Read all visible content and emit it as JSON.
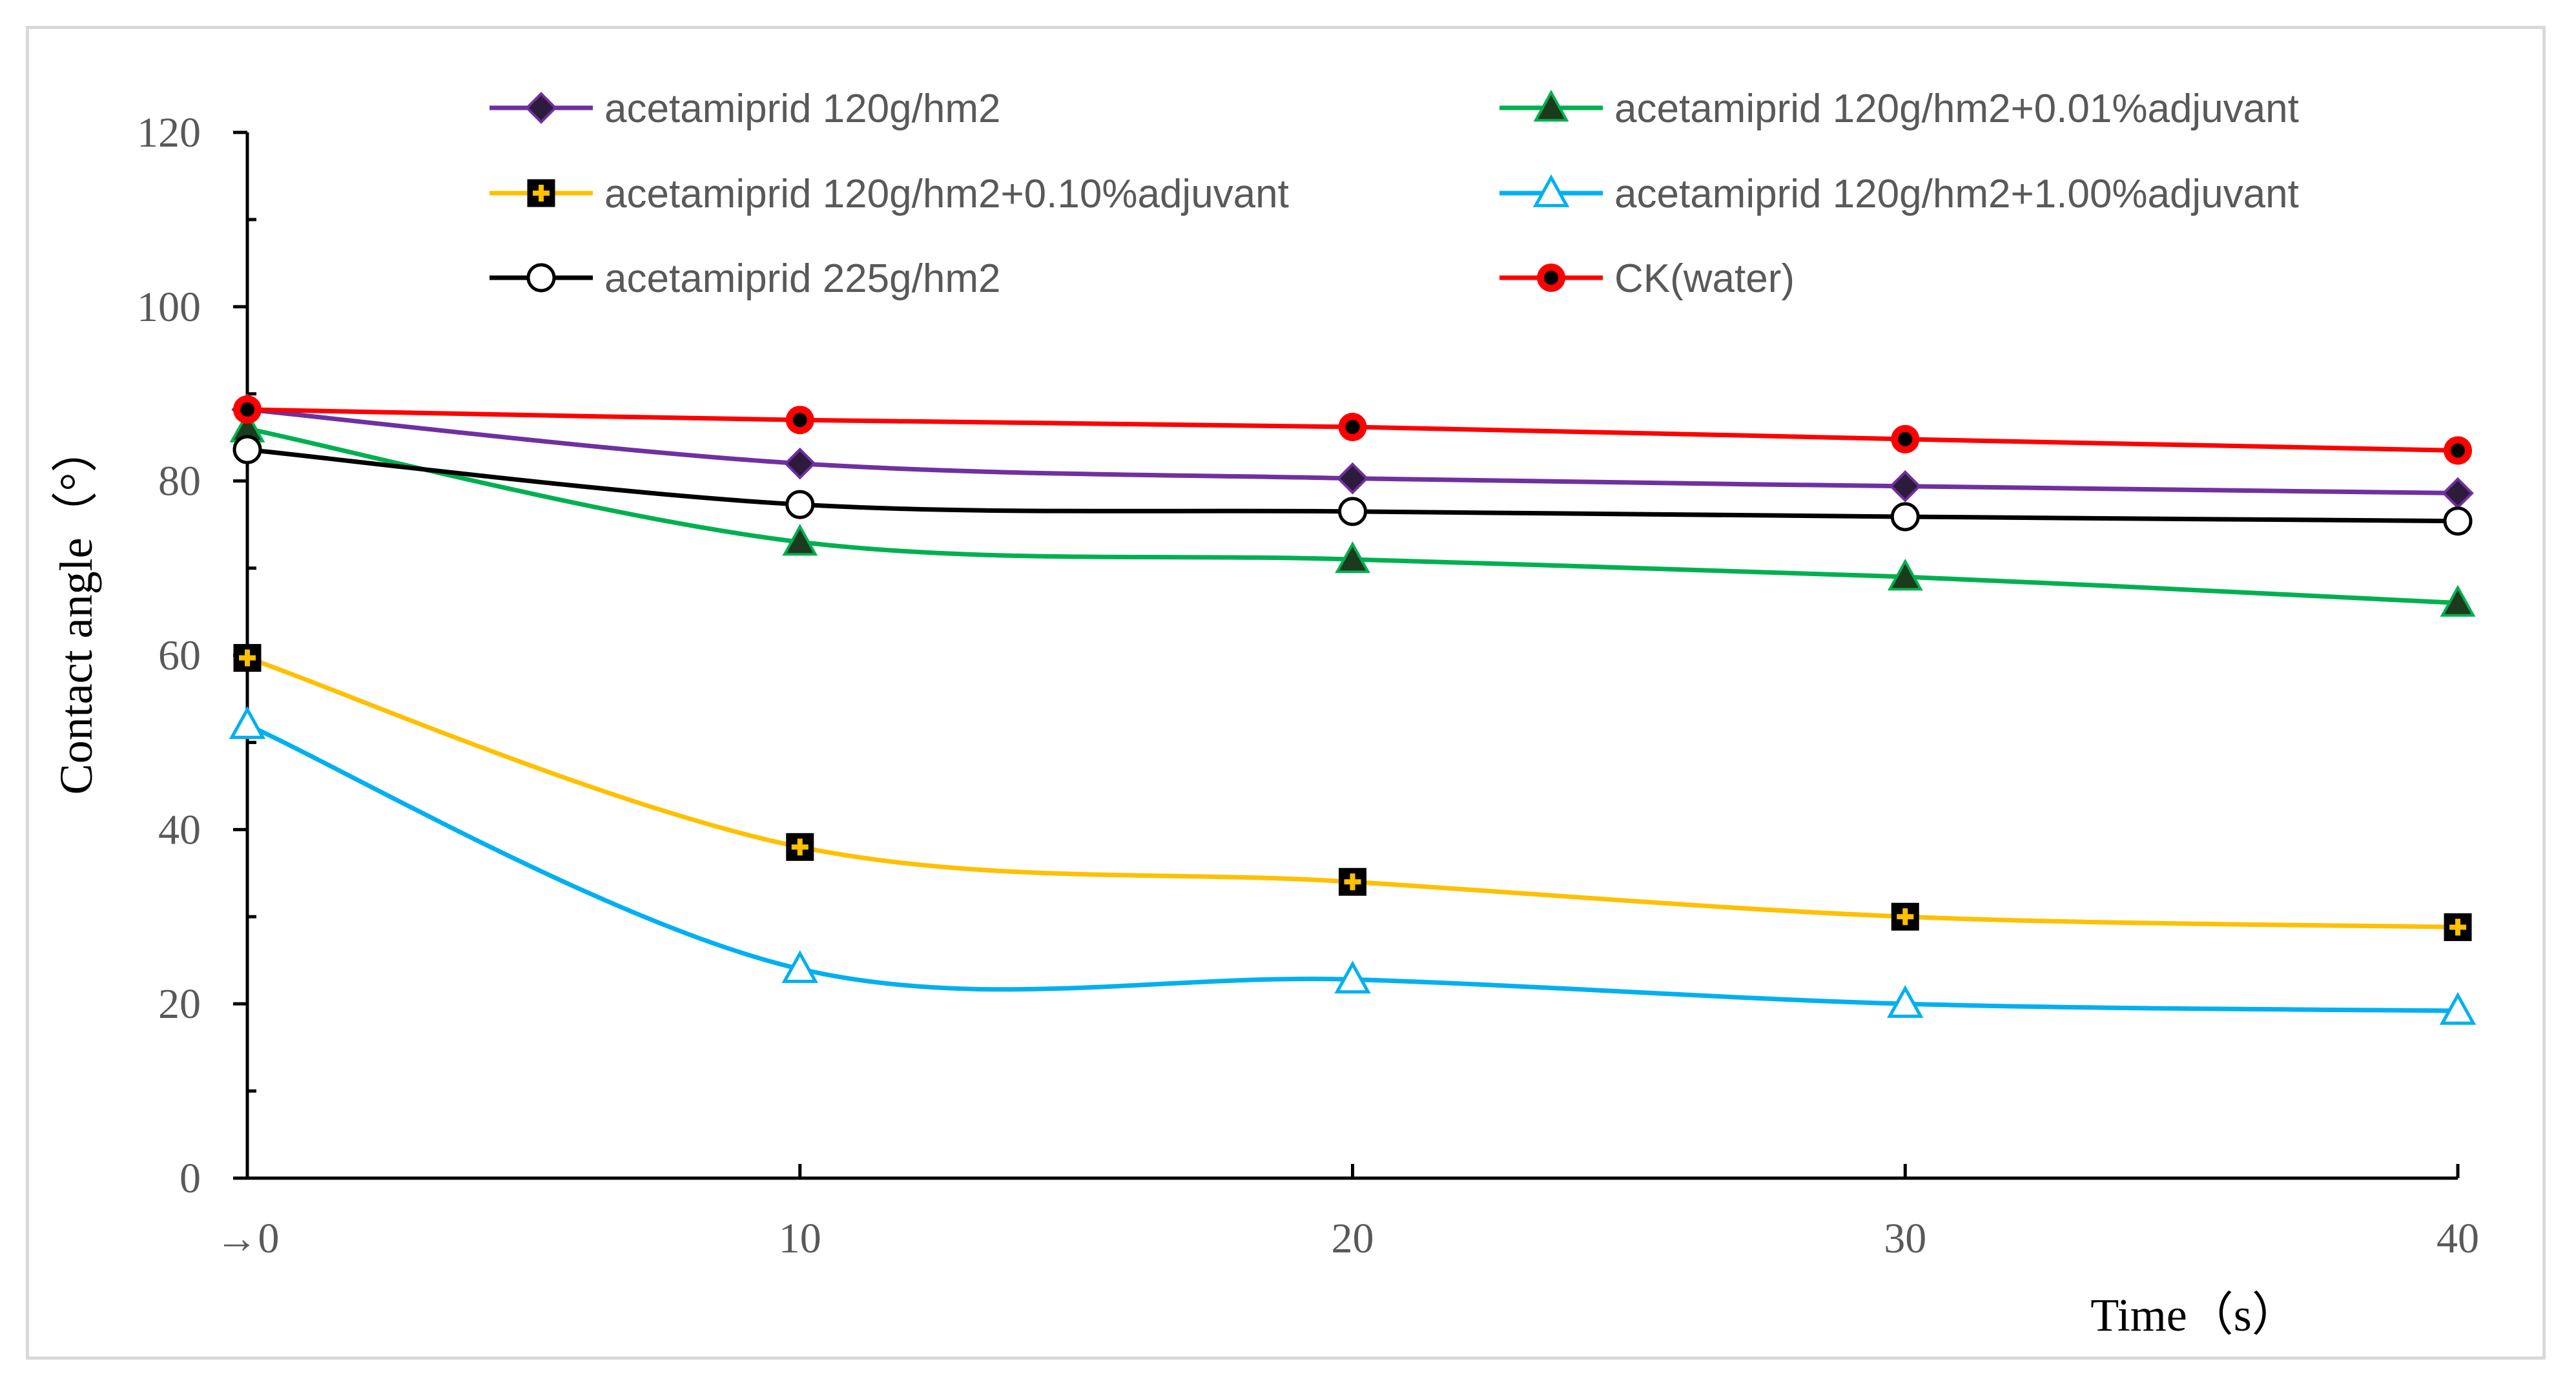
{
  "chart_data": {
    "type": "line",
    "title": "",
    "xlabel": "Time（s）",
    "ylabel": "Contact angle（°）",
    "x": [
      0,
      10,
      20,
      30,
      40
    ],
    "xtick_labels": [
      "→0",
      "10",
      "20",
      "30",
      "40"
    ],
    "yticks": [
      0,
      20,
      40,
      60,
      80,
      100,
      120
    ],
    "xlim": [
      0,
      40
    ],
    "ylim": [
      0,
      120
    ],
    "grid": false,
    "legend_position": "top",
    "series": [
      {
        "name": "acetamiprid 120g/hm2",
        "color": "#7030a0",
        "marker": "diamond",
        "values": [
          88.2,
          82.0,
          80.3,
          79.4,
          78.6
        ]
      },
      {
        "name": "acetamiprid 120g/hm2+0.01%adjuvant",
        "color": "#00b050",
        "marker": "triangle",
        "values": [
          86.0,
          73.0,
          71.0,
          69.0,
          66.0
        ]
      },
      {
        "name": "acetamiprid 120g/hm2+0.10%adjuvant",
        "color": "#ffc000",
        "marker": "plus-square",
        "values": [
          59.7,
          38.0,
          34.0,
          30.0,
          28.8
        ]
      },
      {
        "name": "acetamiprid 120g/hm2+1.00%adjuvant",
        "color": "#00b0f0",
        "marker": "open-triangle",
        "values": [
          52.0,
          24.0,
          22.8,
          20.0,
          19.2
        ]
      },
      {
        "name": "acetamiprid 225g/hm2",
        "color": "#000000",
        "marker": "open-circle",
        "values": [
          83.6,
          77.3,
          76.5,
          75.9,
          75.4
        ]
      },
      {
        "name": "CK(water)",
        "color": "#ff0000",
        "marker": "filled-circle",
        "values": [
          88.2,
          87.0,
          86.2,
          84.8,
          83.5
        ]
      }
    ]
  }
}
